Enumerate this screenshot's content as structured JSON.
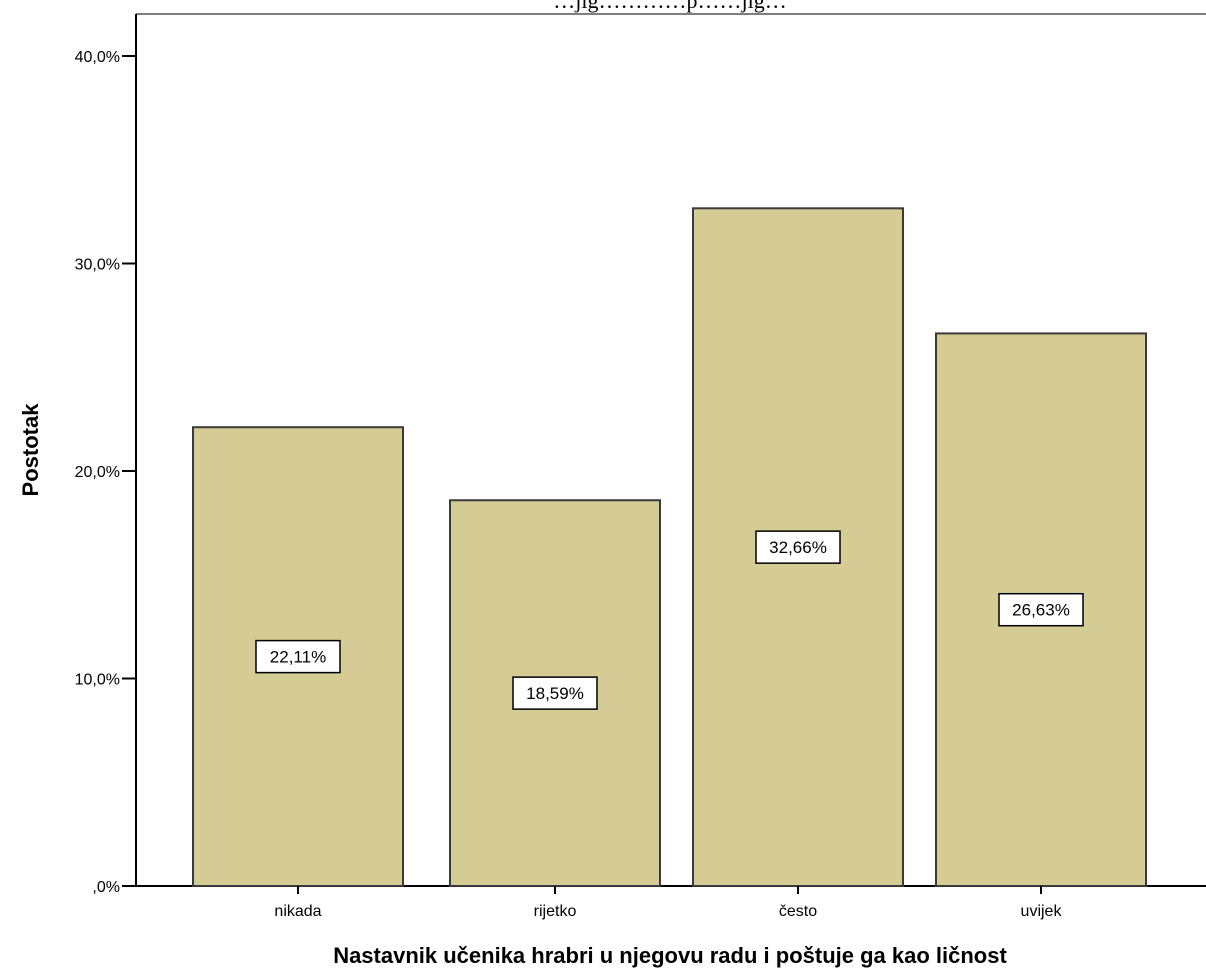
{
  "chart_data": {
    "type": "bar",
    "title": "…jig…………p……jig…",
    "categories": [
      "nikada",
      "rijetko",
      "često",
      "uvijek"
    ],
    "values": [
      22.11,
      18.59,
      32.66,
      26.63
    ],
    "data_labels": [
      "22,11%",
      "18,59%",
      "32,66%",
      "26,63%"
    ],
    "xlabel": "Nastavnik učenika hrabri u njegovu radu i poštuje ga kao ličnost",
    "ylabel": "Postotak",
    "ylim": [
      0,
      42
    ],
    "yticks": [
      {
        "value": 0,
        "label": ",0%"
      },
      {
        "value": 10,
        "label": "10,0%"
      },
      {
        "value": 20,
        "label": "20,0%"
      },
      {
        "value": 30,
        "label": "30,0%"
      },
      {
        "value": 40,
        "label": "40,0%"
      }
    ],
    "grid": false,
    "legend": "none"
  },
  "colors": {
    "bar_fill": "#d4cc94",
    "bar_stroke": "#3a3a3a",
    "axis": "#000000",
    "frame": "#7f7f7f"
  }
}
